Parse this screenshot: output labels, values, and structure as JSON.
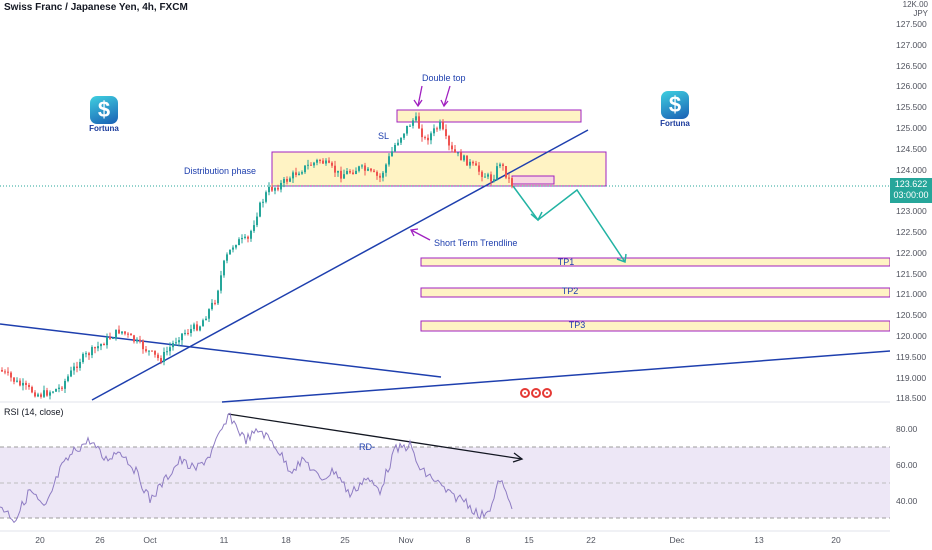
{
  "header": {
    "title": "Swiss Franc / Japanese Yen, 4h, FXCM",
    "axis_unit": [
      "12K.00",
      "JPY"
    ]
  },
  "price_axis": [
    "127.500",
    "127.000",
    "126.500",
    "126.000",
    "125.500",
    "125.000",
    "124.500",
    "124.000",
    "123.500",
    "123.000",
    "122.500",
    "122.000",
    "121.500",
    "121.000",
    "120.500",
    "120.000",
    "119.500",
    "119.000",
    "118.500"
  ],
  "current_price": {
    "value": "123.622",
    "countdown": "03:00:00",
    "color": "#26a69a"
  },
  "rsi": {
    "label": "RSI (14, close)",
    "ticks": [
      "80.00",
      "60.00",
      "40.00"
    ],
    "divergence_label": "RD-"
  },
  "date_axis": [
    "20",
    "26",
    "Oct",
    "11",
    "18",
    "25",
    "Nov",
    "8",
    "15",
    "22",
    "Dec",
    "13",
    "20"
  ],
  "annotations": {
    "double_top": "Double top",
    "sl": "SL",
    "distribution": "Distribution phase",
    "trendline": "Short Term Trendline",
    "tp1": "TP1",
    "tp2": "TP2",
    "tp3": "TP3"
  },
  "brand": {
    "logo_text": "Fortuna"
  },
  "colors": {
    "trendline": "#1e3fae",
    "zone_fill": "#fff3c4",
    "zone_border": "#a020c0",
    "projection": "#22b3a3",
    "rsi_band": "#ede7f6",
    "rsi_line": "#8e7cc3",
    "up_candle": "#26a69a",
    "down_candle": "#ef5350"
  }
}
